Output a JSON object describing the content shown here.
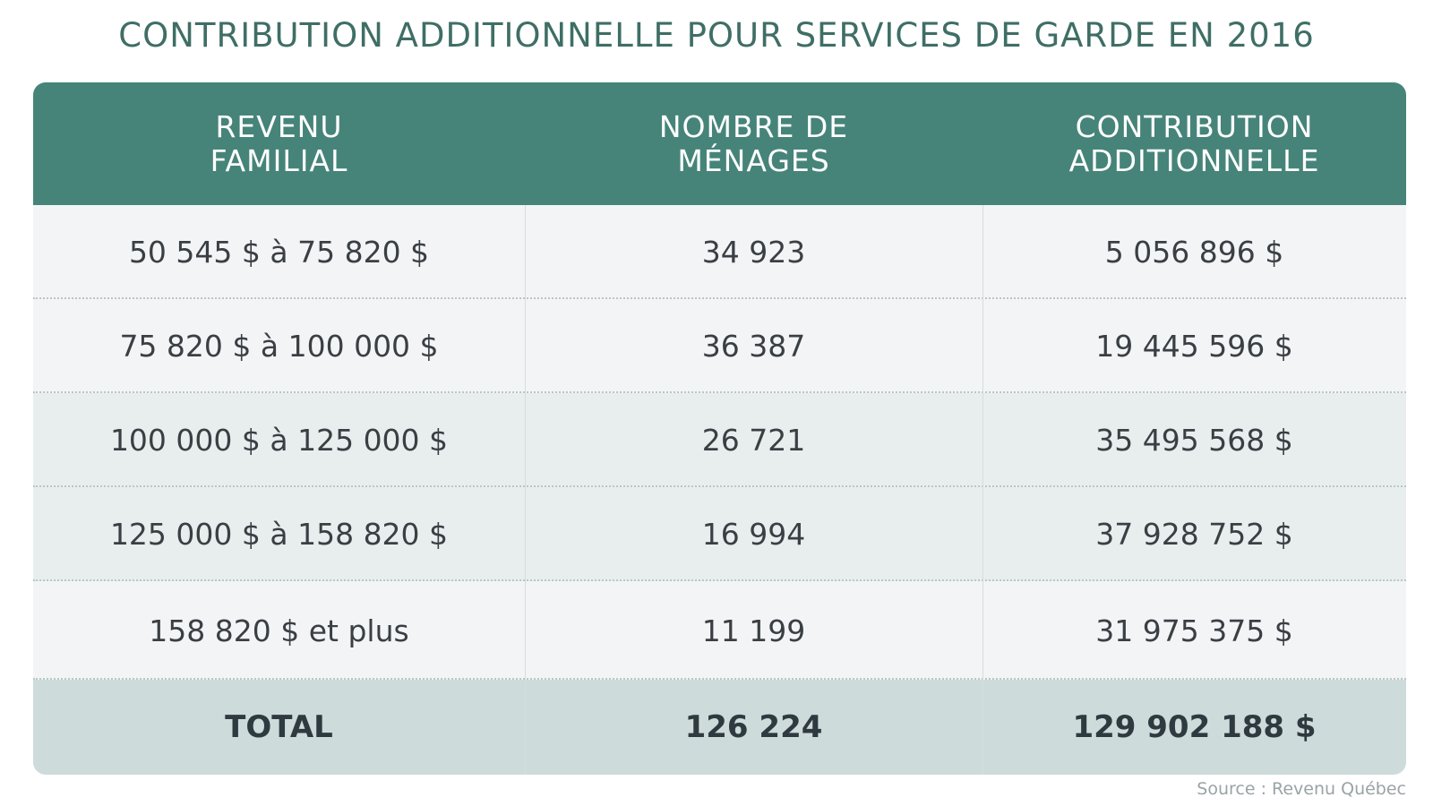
{
  "chart_data": {
    "type": "table",
    "title": "CONTRIBUTION ADDITIONNELLE POUR SERVICES DE GARDE EN 2016",
    "columns": [
      "REVENU\nFAMILIAL",
      "NOMBRE DE\nMÉNAGES",
      "CONTRIBUTION\nADDITIONNELLE"
    ],
    "rows": [
      [
        "50 545 $ à 75 820 $",
        "34 923",
        "5 056 896 $"
      ],
      [
        "75 820 $ à 100 000 $",
        "36 387",
        "19 445 596 $"
      ],
      [
        "100 000 $ à 125 000 $",
        "26 721",
        "35 495 568 $"
      ],
      [
        "125 000 $ à 158 820 $",
        "16 994",
        "37 928 752 $"
      ],
      [
        "158 820 $ et plus",
        "11 199",
        "31 975 375 $"
      ]
    ],
    "total": [
      "TOTAL",
      "126 224",
      "129 902 188 $"
    ],
    "source": "Source : Revenu Québec"
  },
  "colors": {
    "title": "#3f6e65",
    "header_bg": "#46847a",
    "total_bg": "#cddbdb",
    "row_light": "#f3f4f6",
    "row_tint": "#e8eeee"
  }
}
